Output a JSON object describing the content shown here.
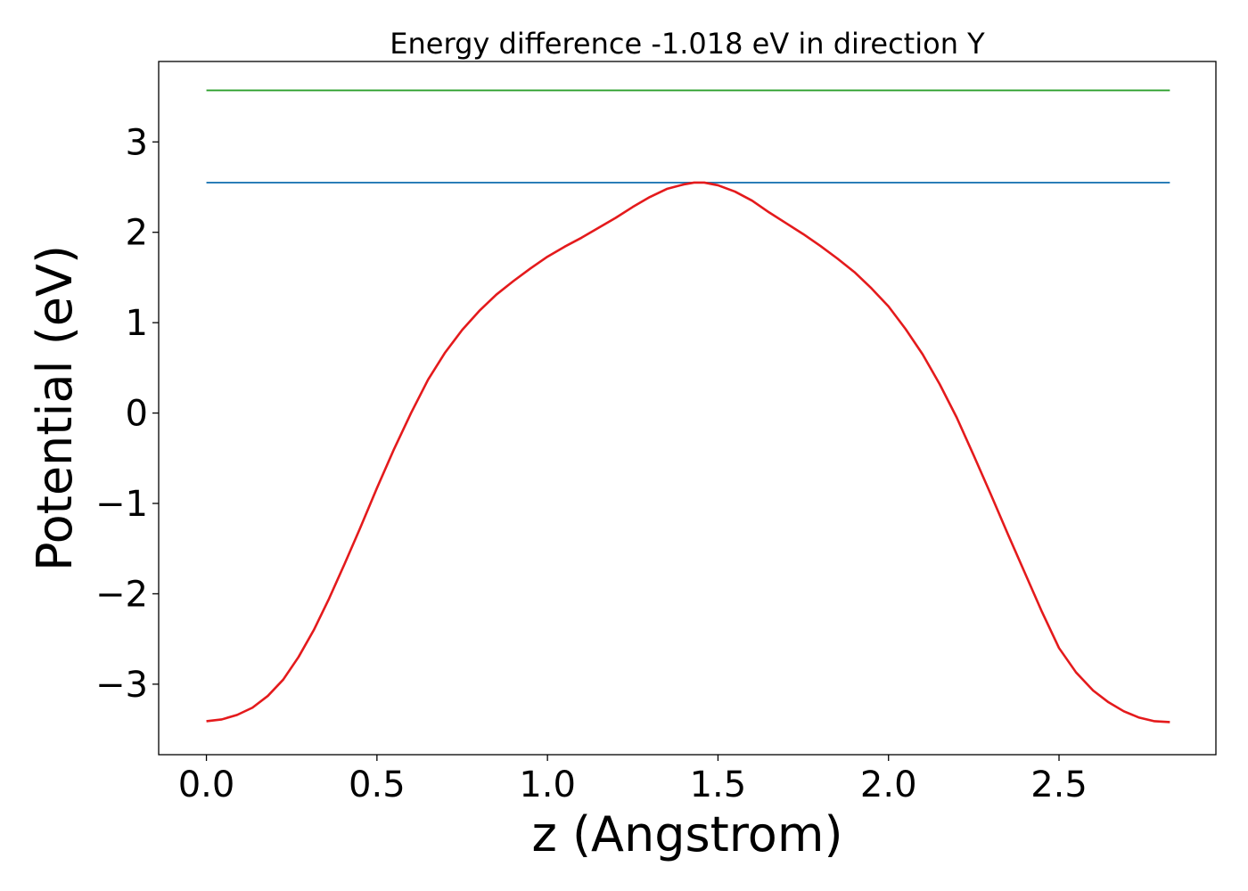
{
  "chart_data": {
    "type": "line",
    "title": "Energy difference -1.018 eV in direction Y",
    "xlabel": "z (Angstrom)",
    "ylabel": "Potential (eV)",
    "xlim": [
      -0.14,
      2.96
    ],
    "ylim": [
      -3.78,
      3.89
    ],
    "xticks": [
      0.0,
      0.5,
      1.0,
      1.5,
      2.0,
      2.5
    ],
    "xtick_labels": [
      "0.0",
      "0.5",
      "1.0",
      "1.5",
      "2.0",
      "2.5"
    ],
    "yticks": [
      -3,
      -2,
      -1,
      0,
      1,
      2,
      3
    ],
    "ytick_labels": [
      "−3",
      "−2",
      "−1",
      "0",
      "1",
      "2",
      "3"
    ],
    "grid": false,
    "series": [
      {
        "color": "#2ca02c",
        "x": [
          0.0,
          2.825
        ],
        "y": [
          3.57,
          3.57
        ]
      },
      {
        "color": "#1f77b4",
        "x": [
          0.0,
          2.825
        ],
        "y": [
          2.55,
          2.55
        ]
      },
      {
        "color": "#e41a1c",
        "x": [
          0.0,
          0.045,
          0.09,
          0.135,
          0.18,
          0.225,
          0.27,
          0.315,
          0.36,
          0.405,
          0.45,
          0.5,
          0.55,
          0.6,
          0.65,
          0.7,
          0.75,
          0.8,
          0.85,
          0.9,
          0.95,
          1.0,
          1.05,
          1.1,
          1.15,
          1.2,
          1.25,
          1.3,
          1.35,
          1.4,
          1.43,
          1.46,
          1.5,
          1.55,
          1.6,
          1.65,
          1.7,
          1.75,
          1.8,
          1.85,
          1.9,
          1.95,
          2.0,
          2.05,
          2.1,
          2.15,
          2.2,
          2.25,
          2.3,
          2.35,
          2.4,
          2.45,
          2.5,
          2.55,
          2.6,
          2.645,
          2.69,
          2.735,
          2.78,
          2.825
        ],
        "y": [
          -3.41,
          -3.39,
          -3.34,
          -3.26,
          -3.13,
          -2.95,
          -2.7,
          -2.4,
          -2.05,
          -1.67,
          -1.28,
          -0.83,
          -0.4,
          0.0,
          0.37,
          0.67,
          0.92,
          1.13,
          1.31,
          1.46,
          1.6,
          1.73,
          1.84,
          1.94,
          2.05,
          2.16,
          2.28,
          2.39,
          2.48,
          2.53,
          2.55,
          2.55,
          2.52,
          2.45,
          2.35,
          2.22,
          2.1,
          1.98,
          1.85,
          1.71,
          1.56,
          1.38,
          1.18,
          0.93,
          0.65,
          0.32,
          -0.05,
          -0.47,
          -0.9,
          -1.34,
          -1.77,
          -2.2,
          -2.6,
          -2.87,
          -3.07,
          -3.2,
          -3.3,
          -3.37,
          -3.41,
          -3.42
        ]
      }
    ]
  }
}
